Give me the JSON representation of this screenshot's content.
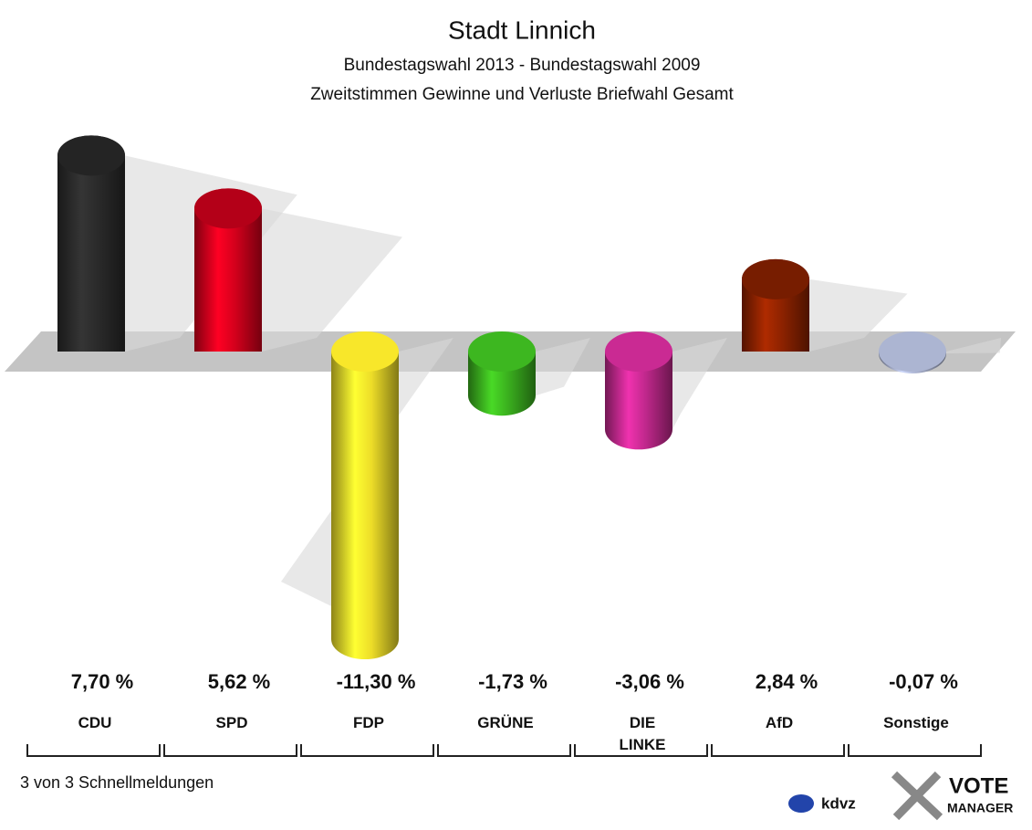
{
  "chart_data": {
    "type": "bar",
    "title": "Stadt Linnich",
    "subtitle": [
      "Bundestagswahl 2013 - Bundestagswahl 2009",
      "Zweitstimmen Gewinne und Verluste Briefwahl Gesamt"
    ],
    "categories": [
      "CDU",
      "SPD",
      "FDP",
      "GRÜNE",
      "DIE LINKE",
      "AfD",
      "Sonstige"
    ],
    "values": [
      7.7,
      5.62,
      -11.3,
      -1.73,
      -3.06,
      2.84,
      -0.07
    ],
    "value_labels": [
      "7,70 %",
      "5,62 %",
      "-11,30 %",
      "-1,73 %",
      "-3,06 %",
      "2,84 %",
      "-0,07 %"
    ],
    "colors": [
      "#2a2a2a",
      "#d4001c",
      "#ecdc28",
      "#3aae1e",
      "#c0288c",
      "#8c2200",
      "#a4acc8"
    ]
  },
  "footer": "3 von 3 Schnellmeldungen",
  "logos": [
    "kdvz",
    "VOTE",
    "MANAGER"
  ]
}
